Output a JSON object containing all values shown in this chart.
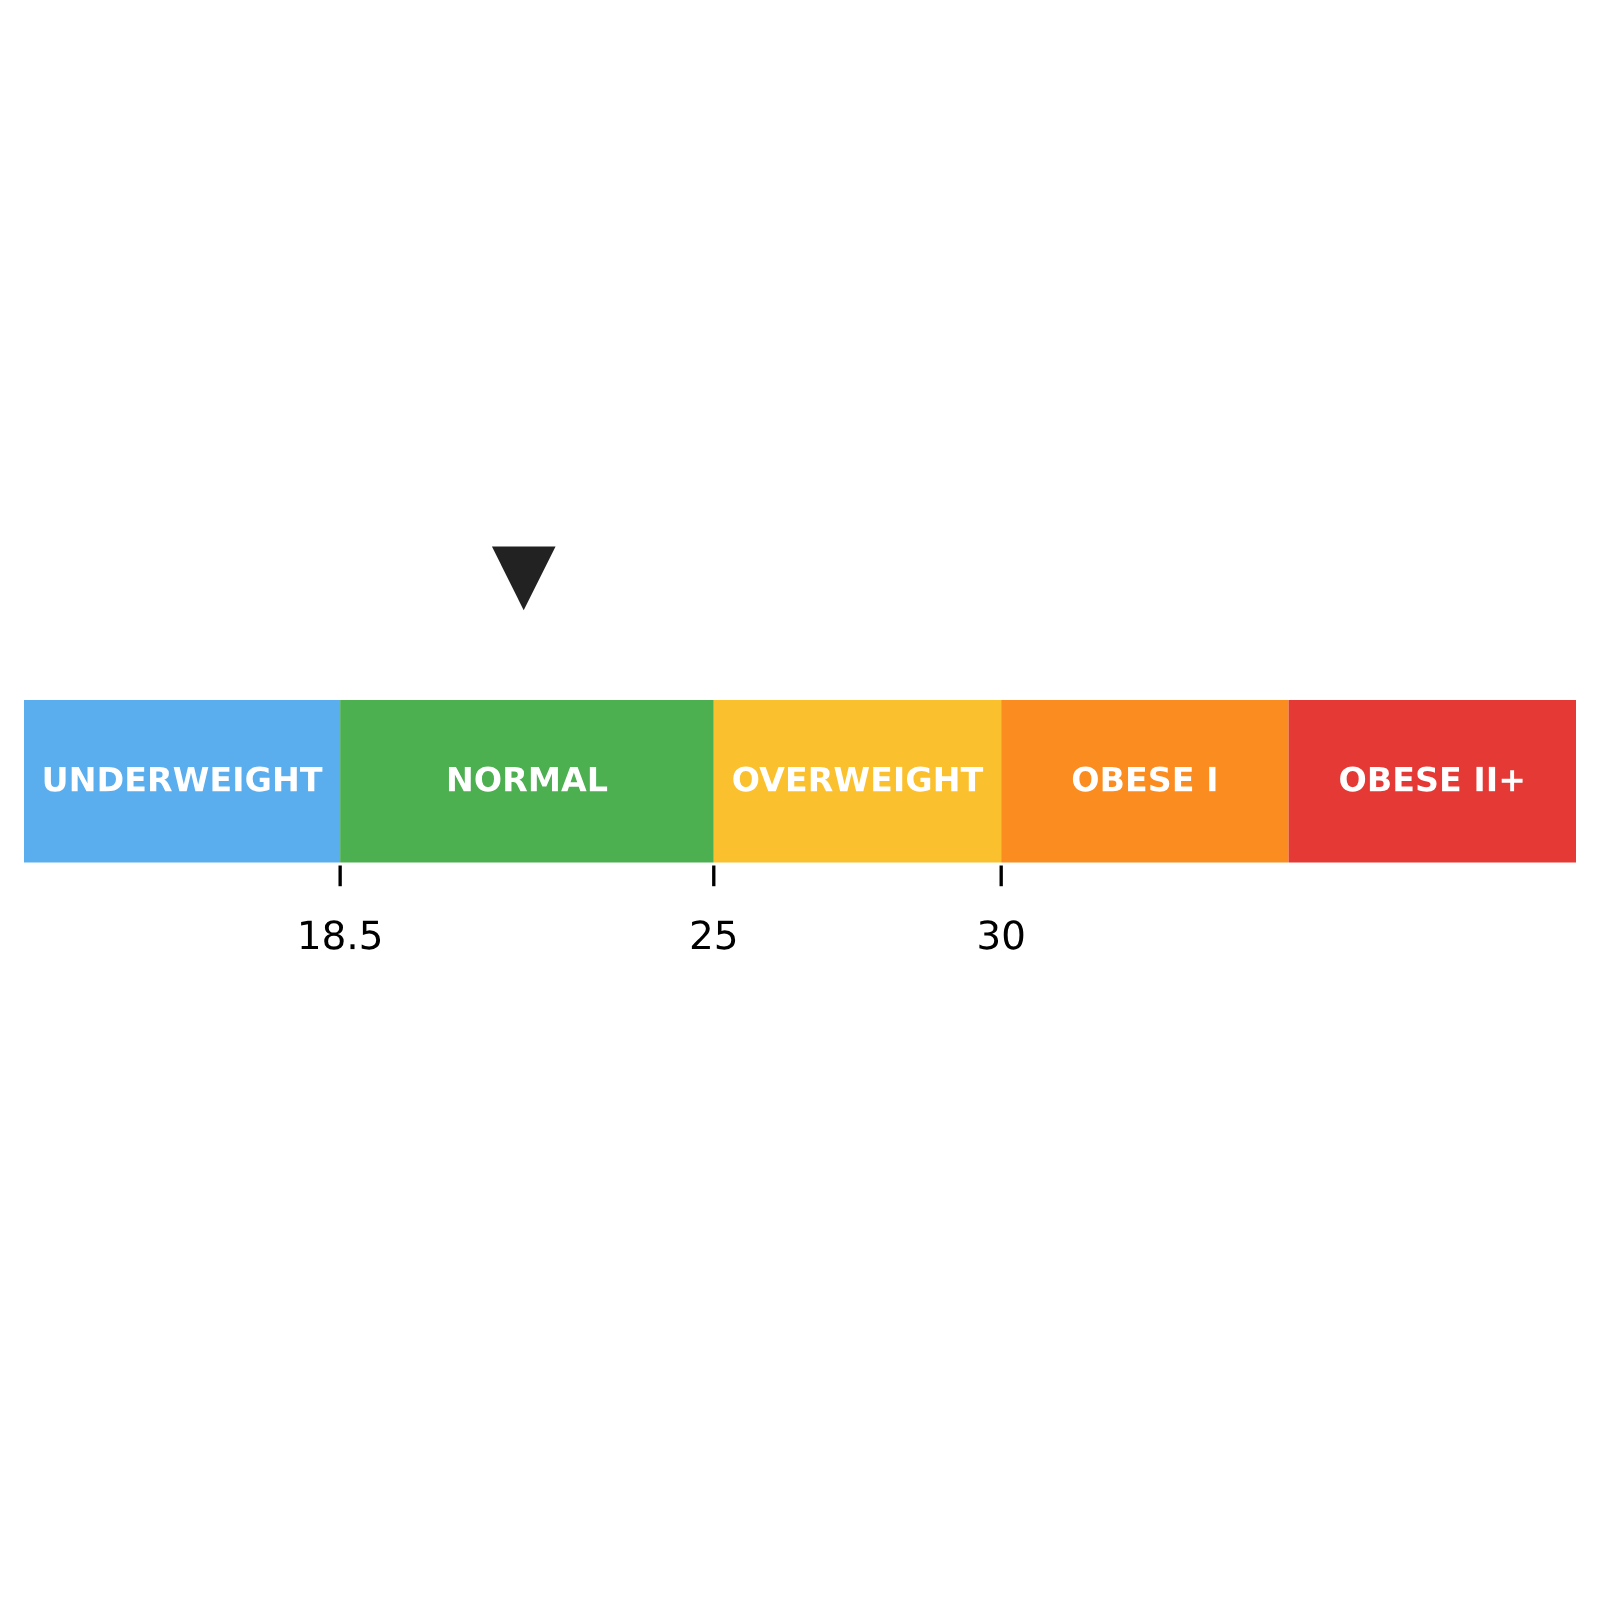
{
  "chart_data": {
    "type": "bar",
    "orientation": "horizontal",
    "categories": [
      null
    ],
    "series": [
      {
        "name": "UNDERWEIGHT",
        "color": "#5aaeee",
        "base": [
          13
        ],
        "values": [
          5.5
        ]
      },
      {
        "name": "NORMAL",
        "color": "#4caf50",
        "base": [
          18.5
        ],
        "values": [
          6.5
        ]
      },
      {
        "name": "OVERWEIGHT",
        "color": "#fbc02d",
        "base": [
          25
        ],
        "values": [
          5
        ]
      },
      {
        "name": "OBESE I",
        "color": "#fb8c1f",
        "base": [
          30
        ],
        "values": [
          5
        ]
      },
      {
        "name": "OBESE II+",
        "color": "#e53935",
        "base": [
          35
        ],
        "values": [
          5
        ]
      }
    ],
    "annotations": [
      "▼"
    ],
    "xlim": [
      13,
      40
    ],
    "xticks": [
      18.5,
      25,
      30
    ],
    "grid": false,
    "legend": false
  }
}
